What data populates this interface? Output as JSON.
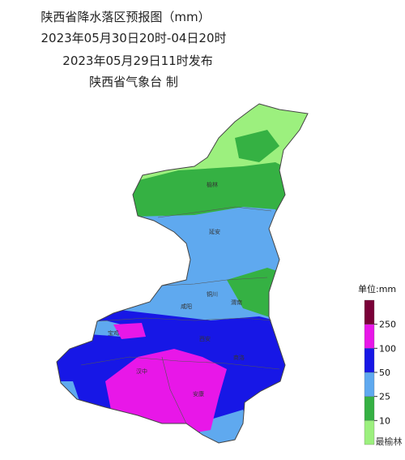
{
  "header": {
    "title": "陕西省降水落区预报图（mm）",
    "period": "2023年05月30日20时-04日20时",
    "issued": "2023年05月29日11时发布",
    "issuer": "陕西省气象台 制"
  },
  "cities": [
    "榆林",
    "延安",
    "铜川",
    "咸阳",
    "渭南",
    "宝鸡",
    "西安",
    "商洛",
    "汉中",
    "安康"
  ],
  "legend": {
    "title": "单位:mm",
    "ticks": [
      10,
      25,
      50,
      100,
      250
    ],
    "colors": [
      "#9cf07e",
      "#35b143",
      "#5fa9ef",
      "#1717e6",
      "#e817e8",
      "#7a0038"
    ]
  },
  "watermark": "最榆林"
}
